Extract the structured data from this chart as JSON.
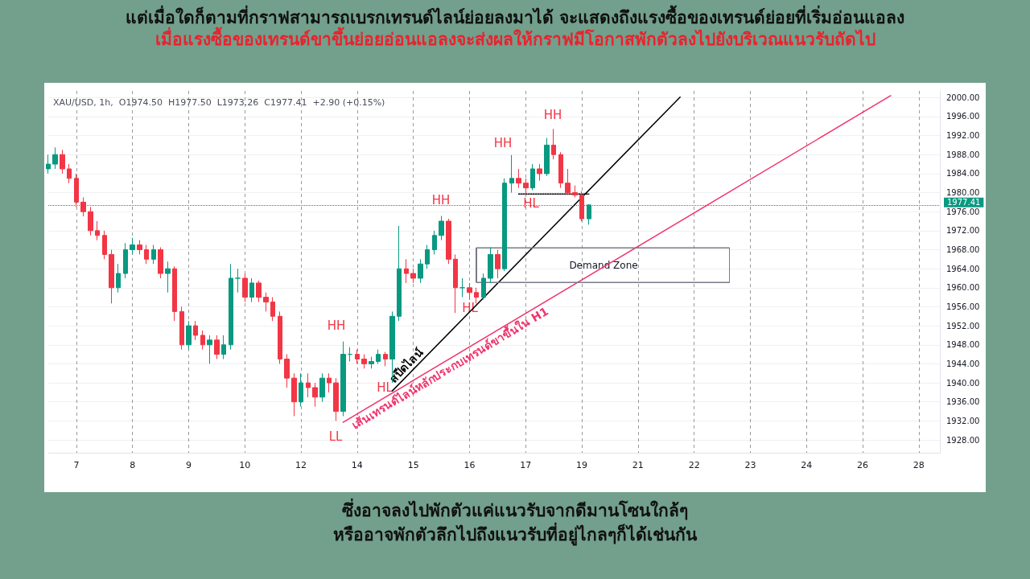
{
  "chart_data": {
    "type": "candlestick",
    "title": "แต่เมื่อใดก็ตามที่กราฟสามารถเบรกเทรนด์ไลน์ย่อยลงมาได้ จะแสดงถึงแรงซื้อของเทรนด์ย่อยที่เริ่มอ่อนแอลง",
    "subtitle": "เมื่อแรงซื้อของเทรนด์ขาขึ้นย่อยอ่อนแอลงจะส่งผลให้กราฟมีโอกาสพักตัวลงไปยังบริเวณแนวรับถัดไป",
    "categories": [
      null,
      null,
      null,
      null,
      "7",
      null,
      null,
      null,
      null,
      null,
      null,
      null,
      "8",
      null,
      null,
      null,
      null,
      null,
      null,
      null,
      "9",
      null,
      null,
      null,
      null,
      null,
      null,
      null,
      "10",
      null,
      null,
      null,
      null,
      null,
      null,
      null,
      "12",
      null,
      null,
      null,
      null,
      null,
      null,
      null,
      "14",
      null,
      null,
      null,
      null,
      null,
      null,
      null,
      "15",
      null,
      null,
      null,
      null,
      null,
      null,
      null,
      "16",
      null,
      null,
      null,
      null,
      null,
      null,
      null,
      "17",
      null,
      null,
      null,
      null,
      null,
      null,
      null,
      "19",
      null,
      null,
      null,
      null,
      null,
      null,
      null,
      "21",
      null,
      null,
      null,
      null,
      null,
      null,
      null,
      "22",
      null,
      null,
      null,
      null,
      null,
      null,
      null,
      "23",
      null,
      null,
      null,
      null,
      null,
      null,
      null,
      "24",
      null,
      null,
      null,
      null,
      null,
      null,
      null,
      "26",
      null,
      null,
      null,
      null,
      null,
      null,
      null,
      "28",
      null,
      null,
      null
    ],
    "ohlc": [
      [
        1985,
        1988,
        1984,
        1986
      ],
      [
        1986,
        1989.5,
        1985,
        1988
      ],
      [
        1988,
        1989,
        1984,
        1985
      ],
      [
        1985,
        1986,
        1982,
        1983
      ],
      [
        1983,
        1984,
        1977,
        1978
      ],
      [
        1978,
        1979,
        1975,
        1976
      ],
      [
        1976,
        1977,
        1971,
        1972
      ],
      [
        1972,
        1974,
        1970,
        1971
      ],
      [
        1971,
        1972,
        1966,
        1967
      ],
      [
        1967,
        1968,
        1956.7,
        1960
      ],
      [
        1960,
        1965,
        1959,
        1963
      ],
      [
        1963,
        1969.4,
        1962,
        1968
      ],
      [
        1968,
        1970.5,
        1967,
        1969
      ],
      [
        1969,
        1970,
        1967,
        1968
      ],
      [
        1968,
        1969,
        1965,
        1966
      ],
      [
        1966,
        1969,
        1965,
        1968
      ],
      [
        1968,
        1968.5,
        1962,
        1963
      ],
      [
        1963,
        1965.5,
        1959,
        1964
      ],
      [
        1964,
        1964.5,
        1953,
        1955
      ],
      [
        1955,
        1956,
        1947,
        1948
      ],
      [
        1948,
        1953,
        1947,
        1952
      ],
      [
        1952,
        1953,
        1949,
        1950
      ],
      [
        1950,
        1951,
        1947,
        1948
      ],
      [
        1948,
        1950,
        1944,
        1949
      ],
      [
        1949,
        1950,
        1945,
        1946
      ],
      [
        1946,
        1950,
        1945,
        1948
      ],
      [
        1948,
        1965,
        1947,
        1962
      ],
      [
        1962,
        1964,
        1959,
        1962
      ],
      [
        1962,
        1963,
        1957,
        1958
      ],
      [
        1958,
        1962,
        1957,
        1961
      ],
      [
        1961,
        1961.5,
        1957,
        1958
      ],
      [
        1958,
        1959,
        1955,
        1957
      ],
      [
        1957,
        1958,
        1953,
        1954
      ],
      [
        1954,
        1955,
        1944,
        1945
      ],
      [
        1945,
        1946,
        1939,
        1941
      ],
      [
        1941,
        1942,
        1933,
        1936
      ],
      [
        1936,
        1942,
        1935,
        1940
      ],
      [
        1940,
        1942,
        1937,
        1939
      ],
      [
        1939,
        1940,
        1935,
        1937
      ],
      [
        1937,
        1942,
        1936,
        1941
      ],
      [
        1941,
        1942,
        1938,
        1940
      ],
      [
        1940,
        1941,
        1932,
        1934
      ],
      [
        1934,
        1948.7,
        1933,
        1946
      ],
      [
        1946,
        1947.5,
        1944.5,
        1946
      ],
      [
        1946,
        1947,
        1944,
        1945
      ],
      [
        1945,
        1946,
        1943,
        1944
      ],
      [
        1944,
        1945.5,
        1943,
        1944.5
      ],
      [
        1944.5,
        1947,
        1944,
        1946
      ],
      [
        1946,
        1946.5,
        1943.5,
        1945
      ],
      [
        1945,
        1955,
        1940,
        1954
      ],
      [
        1954,
        1973,
        1953,
        1964
      ],
      [
        1964,
        1966,
        1961,
        1963
      ],
      [
        1963,
        1964,
        1961,
        1962
      ],
      [
        1962,
        1966,
        1961,
        1965
      ],
      [
        1965,
        1969,
        1964,
        1968
      ],
      [
        1968,
        1972,
        1967,
        1971
      ],
      [
        1971,
        1975.1,
        1970,
        1974
      ],
      [
        1974,
        1974.5,
        1965,
        1966
      ],
      [
        1966,
        1967,
        1954.7,
        1960
      ],
      [
        1960,
        1962,
        1958,
        1960
      ],
      [
        1960,
        1961,
        1957.5,
        1959
      ],
      [
        1959,
        1960,
        1956.7,
        1958
      ],
      [
        1958,
        1963,
        1957.5,
        1962
      ],
      [
        1962,
        1968.5,
        1961,
        1967
      ],
      [
        1967,
        1968,
        1962,
        1964
      ],
      [
        1964,
        1983,
        1963.5,
        1982
      ],
      [
        1982,
        1987.9,
        1980,
        1983
      ],
      [
        1983,
        1985,
        1981,
        1982
      ],
      [
        1982,
        1983,
        1979.7,
        1981
      ],
      [
        1981,
        1986,
        1980.5,
        1985
      ],
      [
        1985,
        1986,
        1982.5,
        1984
      ],
      [
        1984,
        1991.5,
        1983.5,
        1990
      ],
      [
        1990,
        1993.4,
        1987,
        1988
      ],
      [
        1988,
        1988.5,
        1981,
        1982
      ],
      [
        1982,
        1985,
        1979.5,
        1980
      ],
      [
        1980,
        1981.5,
        1979,
        1979.5
      ],
      [
        1979.5,
        1980.3,
        1974,
        1974.5
      ],
      [
        1974.5,
        1977.5,
        1973.26,
        1977.41
      ],
      null,
      null,
      null,
      null,
      null,
      null,
      null,
      null,
      null,
      null,
      null,
      null,
      null,
      null,
      null,
      null,
      null,
      null,
      null,
      null,
      null,
      null,
      null,
      null,
      null,
      null,
      null,
      null,
      null,
      null,
      null,
      null,
      null,
      null,
      null,
      null,
      null,
      null,
      null,
      null,
      null,
      null,
      null,
      null,
      null,
      null,
      null,
      null,
      null,
      null
    ],
    "series": [
      {
        "type": "line",
        "name": "สปีดไลน์",
        "color": "#000000",
        "values": [
          null,
          null,
          null,
          null,
          null,
          null,
          null,
          null,
          null,
          null,
          null,
          null,
          null,
          null,
          null,
          null,
          null,
          null,
          null,
          null,
          null,
          null,
          null,
          null,
          null,
          null,
          null,
          null,
          null,
          null,
          null,
          null,
          null,
          null,
          null,
          null,
          null,
          null,
          null,
          null,
          null,
          null,
          null,
          null,
          null,
          null,
          null,
          null,
          null,
          1938.3,
          null,
          null,
          null,
          null,
          null,
          null,
          null,
          null,
          null,
          null,
          null,
          null,
          null,
          null,
          null,
          null,
          null,
          null,
          null,
          null,
          null,
          null,
          null,
          null,
          null,
          null,
          null,
          null,
          null,
          null,
          null,
          null,
          null,
          null,
          null,
          null,
          null,
          null,
          null,
          null,
          2000.1,
          null,
          null,
          null,
          null,
          null,
          null,
          null,
          null,
          null,
          null,
          null,
          null,
          null,
          null,
          null,
          null,
          null,
          null,
          null,
          null,
          null,
          null,
          null,
          null,
          null,
          null,
          null,
          null,
          null,
          null,
          null,
          null,
          null,
          null,
          null,
          null,
          null
        ]
      },
      {
        "type": "line",
        "name": "เส้นเทรนด์ไลน์หลักประกบเทรนด์ขาขึ้นใน H1",
        "color": "#f0336b",
        "values": [
          null,
          null,
          null,
          null,
          null,
          null,
          null,
          null,
          null,
          null,
          null,
          null,
          null,
          null,
          null,
          null,
          null,
          null,
          null,
          null,
          null,
          null,
          null,
          null,
          null,
          null,
          null,
          null,
          null,
          null,
          null,
          null,
          null,
          null,
          null,
          null,
          null,
          null,
          null,
          null,
          null,
          null,
          1931.7,
          null,
          null,
          null,
          null,
          null,
          null,
          null,
          null,
          null,
          null,
          null,
          null,
          null,
          null,
          null,
          null,
          null,
          null,
          null,
          null,
          null,
          null,
          null,
          null,
          null,
          null,
          null,
          null,
          null,
          null,
          null,
          null,
          null,
          null,
          null,
          null,
          null,
          null,
          null,
          null,
          null,
          null,
          null,
          null,
          null,
          null,
          null,
          null,
          null,
          null,
          null,
          null,
          null,
          null,
          null,
          null,
          null,
          null,
          null,
          null,
          null,
          null,
          null,
          null,
          null,
          null,
          null,
          null,
          null,
          null,
          null,
          null,
          null,
          null,
          null,
          null,
          null,
          2000.4,
          null,
          null,
          null,
          null,
          null,
          null,
          null
        ]
      },
      {
        "type": "line",
        "color": "#000000",
        "line_style": "dotted",
        "values": [
          null,
          null,
          null,
          null,
          null,
          null,
          null,
          null,
          null,
          null,
          null,
          null,
          null,
          null,
          null,
          null,
          null,
          null,
          null,
          null,
          null,
          null,
          null,
          null,
          null,
          null,
          null,
          null,
          null,
          null,
          null,
          null,
          null,
          null,
          null,
          null,
          null,
          null,
          null,
          null,
          null,
          null,
          null,
          null,
          null,
          null,
          null,
          null,
          null,
          null,
          null,
          null,
          null,
          null,
          null,
          null,
          null,
          null,
          null,
          null,
          null,
          null,
          null,
          null,
          null,
          null,
          null,
          1979.7,
          null,
          null,
          null,
          null,
          null,
          null,
          null,
          null,
          null,
          1979.7,
          null,
          null,
          null,
          null,
          null,
          null,
          null,
          null,
          null,
          null,
          null,
          null,
          null,
          null,
          null,
          null,
          null,
          null,
          null,
          null,
          null,
          null,
          null,
          null,
          null,
          null,
          null,
          null,
          null,
          null,
          null,
          null,
          null,
          null,
          null,
          null,
          null,
          null,
          null,
          null,
          null,
          null,
          null,
          null,
          null,
          null,
          null,
          null,
          null,
          null
        ]
      },
      {
        "type": "line",
        "color": "#787b86",
        "values": [
          null,
          null,
          null,
          null,
          null,
          null,
          null,
          null,
          null,
          null,
          null,
          null,
          null,
          null,
          null,
          null,
          null,
          null,
          null,
          null,
          null,
          null,
          null,
          null,
          null,
          null,
          null,
          null,
          null,
          null,
          null,
          null,
          null,
          null,
          null,
          null,
          null,
          null,
          null,
          null,
          null,
          null,
          null,
          null,
          null,
          null,
          null,
          null,
          null,
          null,
          null,
          null,
          null,
          null,
          null,
          null,
          null,
          null,
          null,
          null,
          null,
          1968.4,
          null,
          null,
          null,
          null,
          null,
          null,
          null,
          null,
          null,
          null,
          null,
          null,
          null,
          null,
          null,
          null,
          null,
          null,
          null,
          null,
          null,
          null,
          null,
          null,
          null,
          null,
          null,
          null,
          null,
          null,
          null,
          null,
          null,
          null,
          null,
          1968.4,
          null,
          null,
          null,
          null,
          null,
          null,
          null,
          null,
          null,
          null,
          null,
          null,
          null,
          null,
          null,
          null,
          null,
          null,
          null,
          null,
          null,
          null,
          null,
          null,
          null,
          null,
          null,
          null,
          null,
          null
        ]
      },
      {
        "type": "line",
        "color": "#787b86",
        "values": [
          null,
          null,
          null,
          null,
          null,
          null,
          null,
          null,
          null,
          null,
          null,
          null,
          null,
          null,
          null,
          null,
          null,
          null,
          null,
          null,
          null,
          null,
          null,
          null,
          null,
          null,
          null,
          null,
          null,
          null,
          null,
          null,
          null,
          null,
          null,
          null,
          null,
          null,
          null,
          null,
          null,
          null,
          null,
          null,
          null,
          null,
          null,
          null,
          null,
          null,
          null,
          null,
          null,
          null,
          null,
          null,
          null,
          null,
          null,
          null,
          null,
          1961.1,
          null,
          null,
          null,
          null,
          null,
          null,
          null,
          null,
          null,
          null,
          null,
          null,
          null,
          null,
          null,
          null,
          null,
          null,
          null,
          null,
          null,
          null,
          null,
          null,
          null,
          null,
          null,
          null,
          null,
          null,
          null,
          null,
          null,
          null,
          null,
          1961.1,
          null,
          null,
          null,
          null,
          null,
          null,
          null,
          null,
          null,
          null,
          null,
          null,
          null,
          null,
          null,
          null,
          null,
          null,
          null,
          null,
          null,
          null,
          null,
          null,
          null,
          null,
          null,
          null,
          null,
          null
        ]
      }
    ],
    "ref_lines": [
      {
        "axis": "y",
        "value": 1977.41,
        "label": "1977.41",
        "color": "#089981",
        "line_style": "dotted"
      }
    ],
    "annotations": [
      "XAU/USD, 1h,  O1974.50  H1977.50  L1973.26  C1977.41  +2.90 (+0.15%)",
      "ซึ่งอาจลงไปพักตัวแค่แนวรับจากดีมานโซนใกล้ๆ",
      "หรืออาจพักตัวลึกไปถึงแนวรับที่อยู่ไกลๆก็ได้เช่นกัน",
      "HH",
      "LL",
      "HL",
      "HH",
      "HL",
      "HH",
      "HL",
      "HH",
      "Demand Zone"
    ],
    "ylim": [
      1925.3,
      2001.4
    ],
    "yticks": [
      {
        "value": 1928,
        "label": "1928.00"
      },
      {
        "value": 1932,
        "label": "1932.00"
      },
      {
        "value": 1936,
        "label": "1936.00"
      },
      {
        "value": 1940,
        "label": "1940.00"
      },
      {
        "value": 1944,
        "label": "1944.00"
      },
      {
        "value": 1948,
        "label": "1948.00"
      },
      {
        "value": 1952,
        "label": "1952.00"
      },
      {
        "value": 1956,
        "label": "1956.00"
      },
      {
        "value": 1960,
        "label": "1960.00"
      },
      {
        "value": 1964,
        "label": "1964.00"
      },
      {
        "value": 1968,
        "label": "1968.00"
      },
      {
        "value": 1972,
        "label": "1972.00"
      },
      {
        "value": 1976,
        "label": "1976.00"
      },
      {
        "value": 1980,
        "label": "1980.00"
      },
      {
        "value": 1984,
        "label": "1984.00"
      },
      {
        "value": 1988,
        "label": "1988.00"
      },
      {
        "value": 1992,
        "label": "1992.00"
      },
      {
        "value": 1996,
        "label": "1996.00"
      },
      {
        "value": 2000,
        "label": "2000.00"
      }
    ],
    "grid": true,
    "line_style": "solid"
  }
}
